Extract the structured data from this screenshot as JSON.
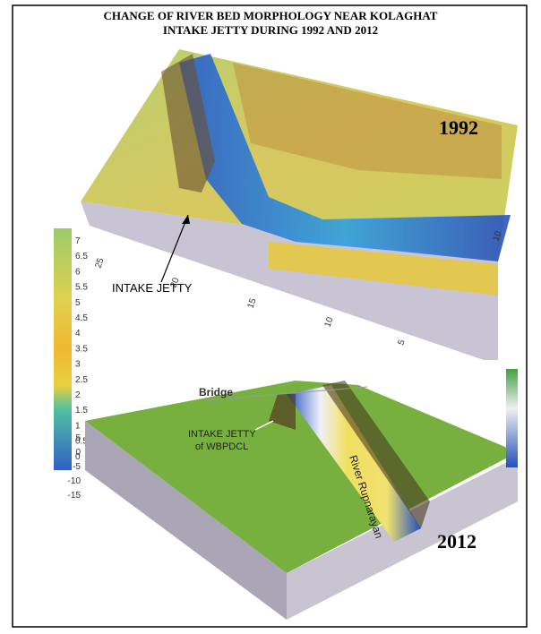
{
  "title": [
    "CHANGE OF RIVER BED MORPHOLOGY NEAR KOLAGHAT",
    "INTAKE JETTY DURING 1992 AND 2012"
  ],
  "panel_1992": {
    "year": "1992",
    "annotation": "INTAKE JETTY",
    "colorbar": [
      "7",
      "6.5",
      "6",
      "5.5",
      "5",
      "4.5",
      "4",
      "3.5",
      "3",
      "2.5",
      "2",
      "1.5",
      "1",
      "0.5",
      "0"
    ],
    "axis_labels": [
      "25",
      "20",
      "15",
      "10",
      "5",
      "10"
    ]
  },
  "panel_2012": {
    "year": "2012",
    "bridge": "Bridge",
    "jetty": [
      "INTAKE JETTY",
      "of WBPDCL"
    ],
    "river": "River Rupnarayan",
    "axis_labels": [
      "5",
      "0",
      "-5",
      "-10",
      "-15"
    ]
  }
}
